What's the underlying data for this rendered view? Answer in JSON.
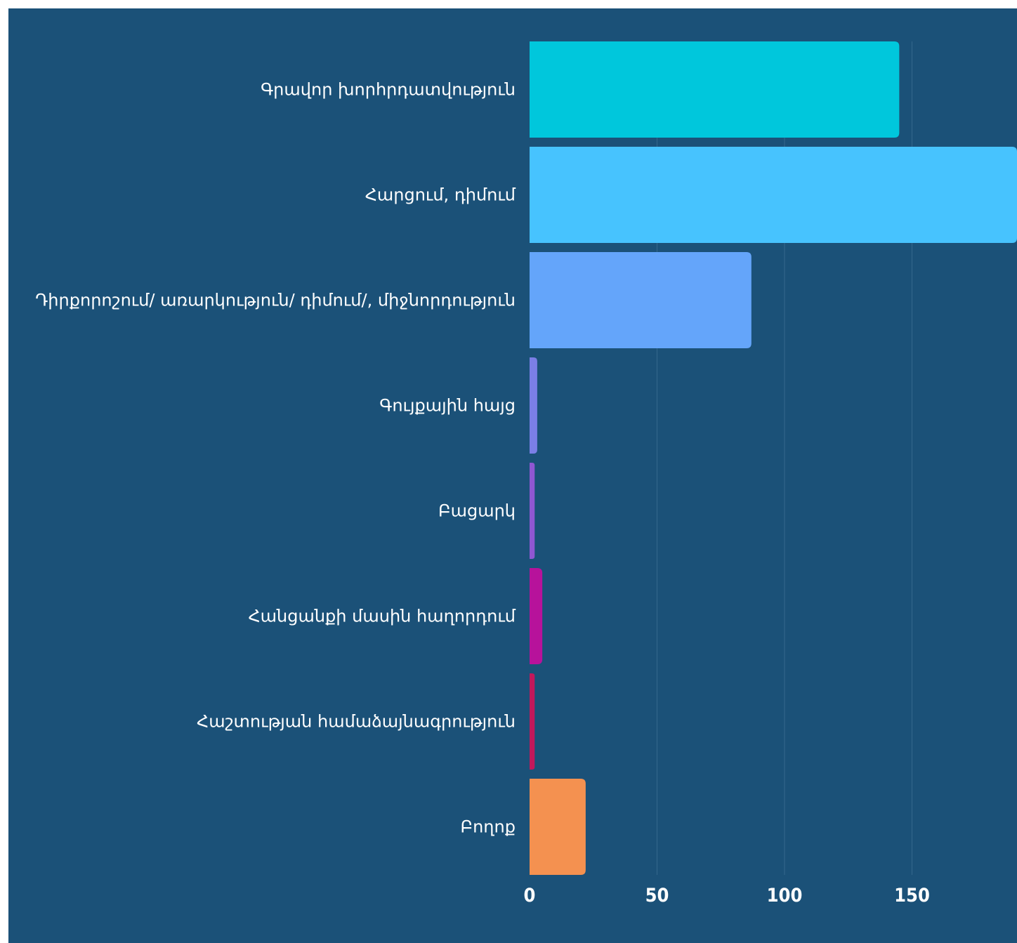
{
  "chart_data": {
    "type": "bar",
    "orientation": "horizontal",
    "title": "",
    "xlabel": "",
    "ylabel": "",
    "categories": [
      "Գրավոր խորհրդատվություն",
      "Հարցում, դիմում",
      "Դիրքորոշում/ առարկություն/ դիմում/, միջնորդություն",
      "Գույքային հայց",
      "Բացարկ",
      "Հանցանքի մասին հաղորդում",
      "Հաշտության համաձայնագրություն",
      "Բողոք"
    ],
    "values": [
      145,
      193,
      87,
      3,
      2,
      5,
      2,
      22
    ],
    "colors": [
      "#00c7dc",
      "#47c3fe",
      "#64a5fa",
      "#7b7fe6",
      "#8f57d2",
      "#b7129b",
      "#c2185b",
      "#f49150"
    ],
    "xlim": [
      0,
      190
    ],
    "x_ticks": [
      0,
      50,
      100,
      150
    ],
    "grid": true,
    "legend": "none",
    "background": "#1b5178"
  }
}
